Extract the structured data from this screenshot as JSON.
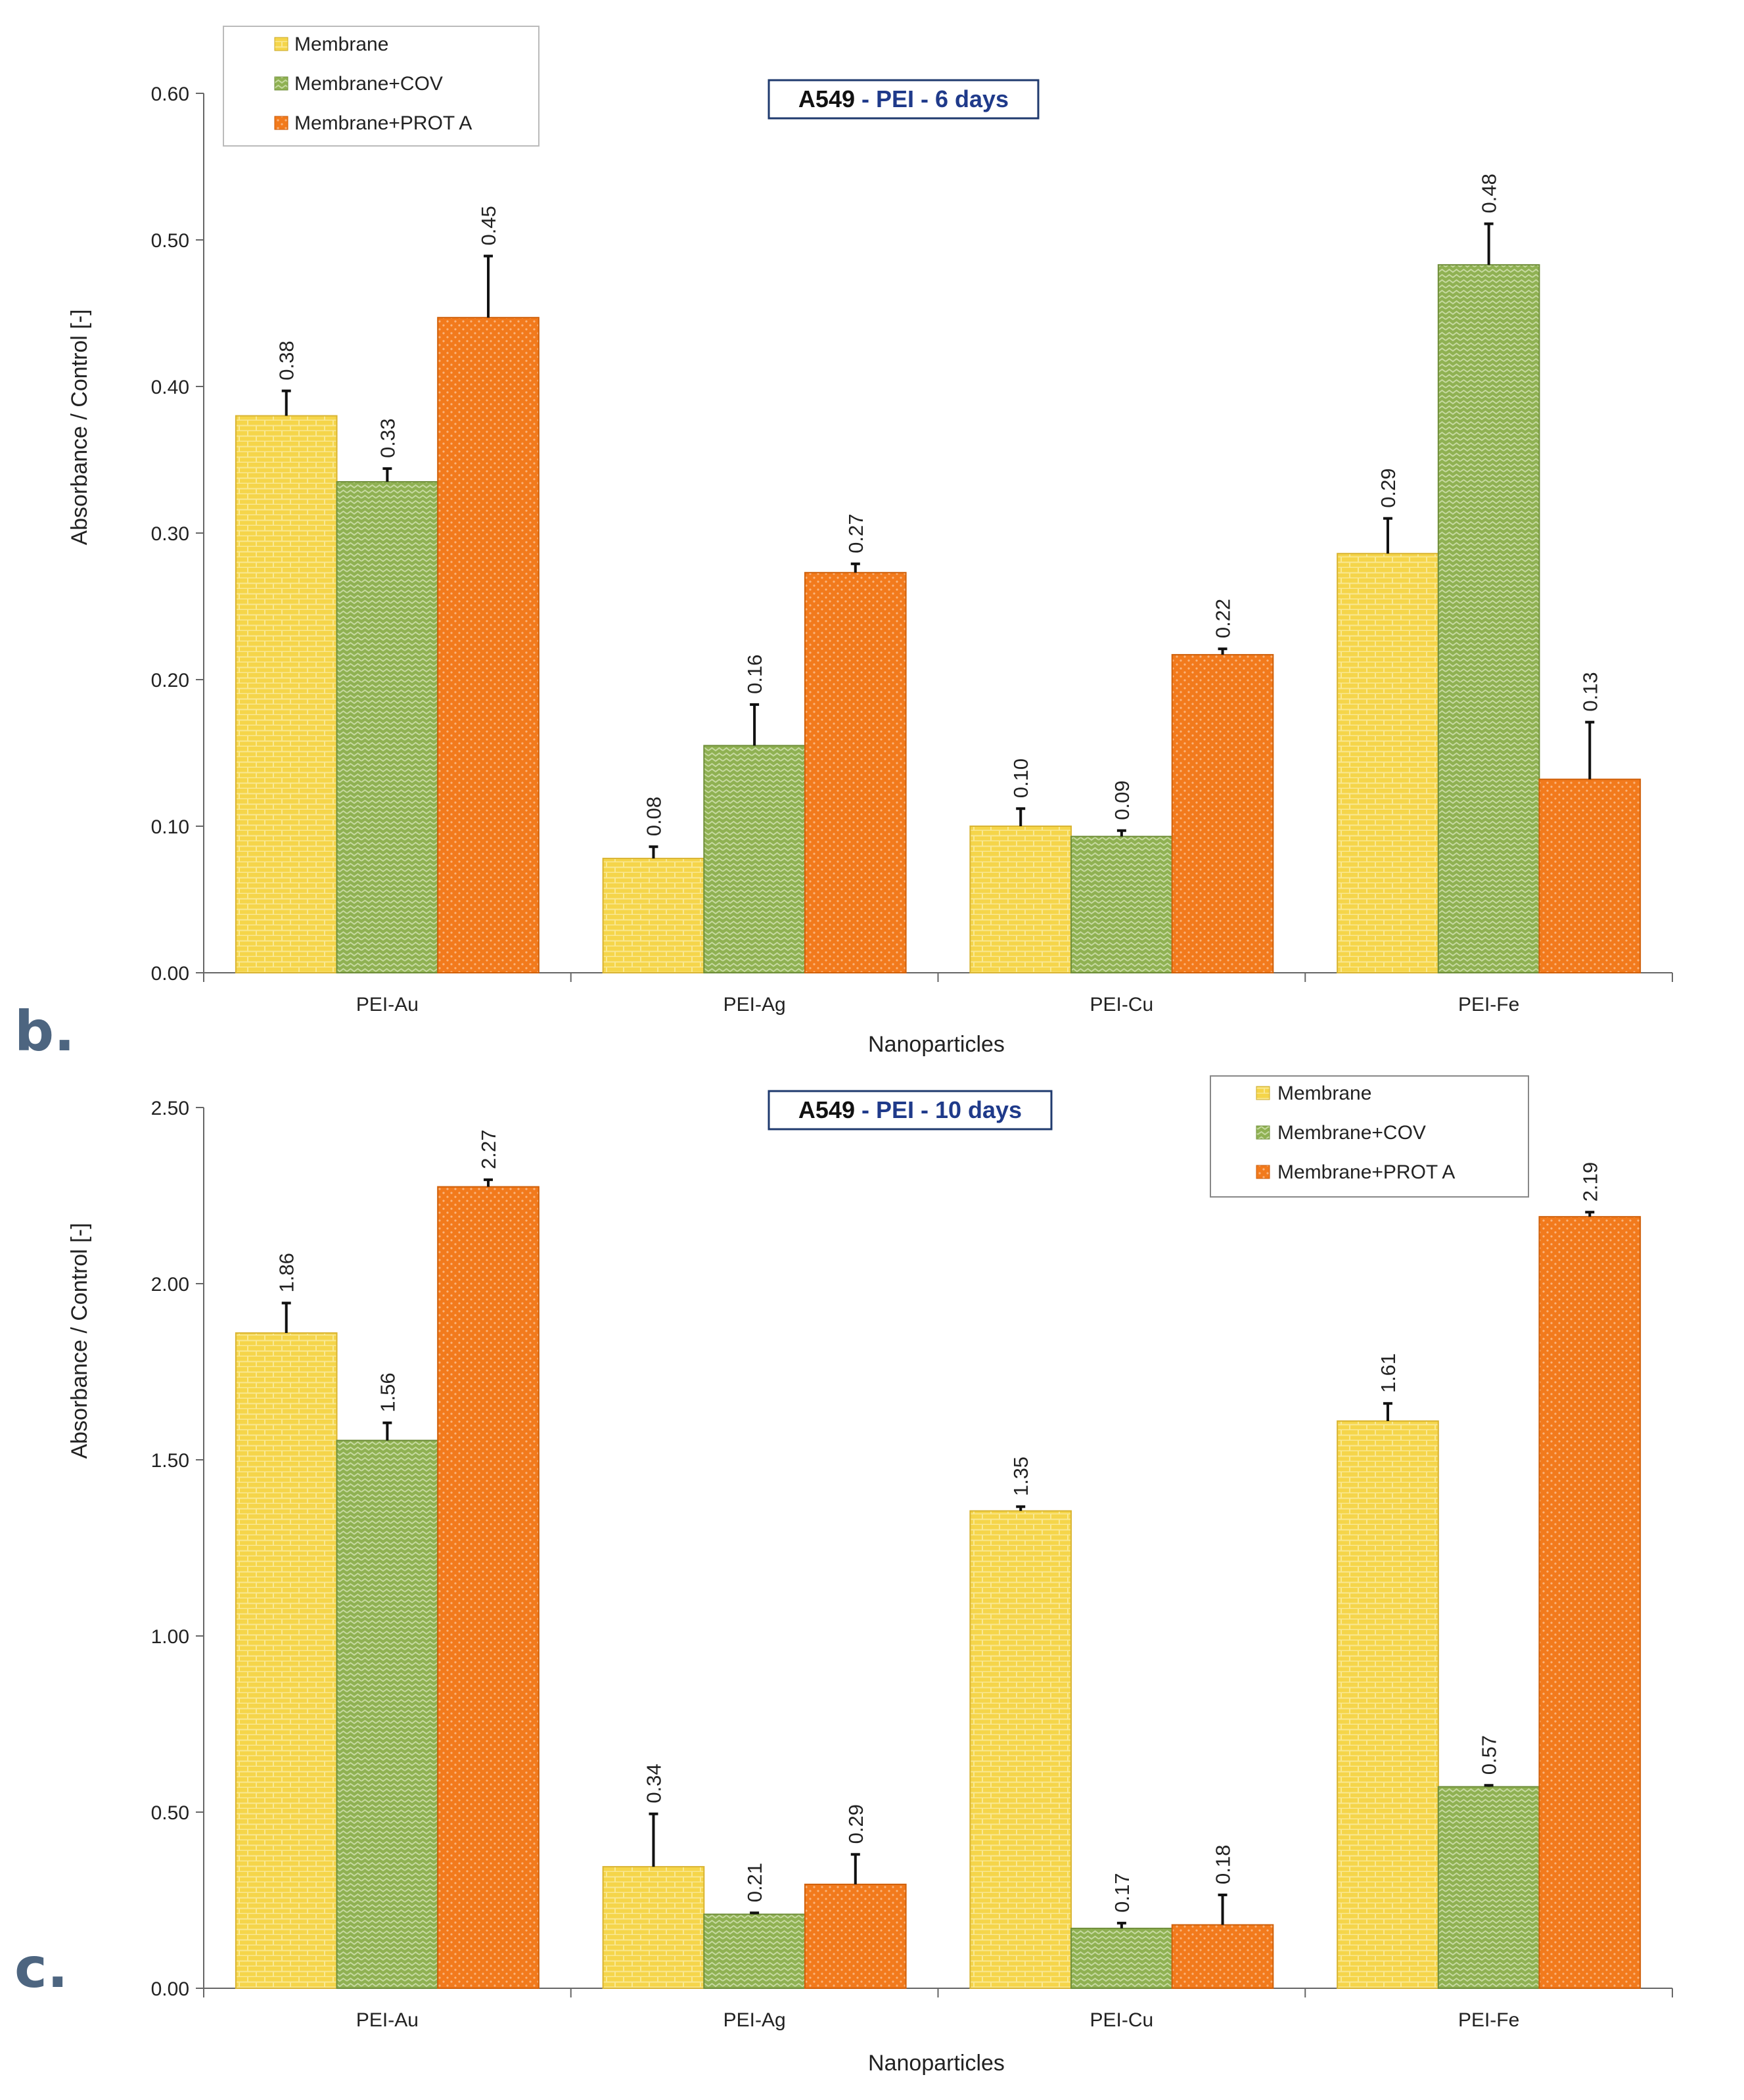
{
  "panel_labels": [
    "b.",
    "c."
  ],
  "colors": {
    "membrane": "#f5d54a",
    "membrane_cov": "#8fb152",
    "membrane_prot_a": "#f27a1c",
    "title_text": "#1f3a8a",
    "title_border": "#1f3a6e"
  },
  "chart_data": [
    {
      "type": "bar",
      "title_prefix": "A549",
      "title_suffix": " - PEI - 6 days",
      "xlabel": "Nanoparticles",
      "ylabel": "Absorbance / Control [-]",
      "ylim": [
        0,
        0.6
      ],
      "yticks": [
        "0.00",
        "0.10",
        "0.20",
        "0.30",
        "0.40",
        "0.50",
        "0.60"
      ],
      "categories": [
        "PEI-Au",
        "PEI-Ag",
        "PEI-Cu",
        "PEI-Fe"
      ],
      "legend_position": "top-left",
      "series": [
        {
          "name": "Membrane",
          "values": [
            0.38,
            0.078,
            0.1,
            0.286
          ],
          "errors": [
            0.017,
            0.008,
            0.012,
            0.024
          ],
          "labels": [
            "0.38",
            "0.08",
            "0.10",
            "0.29"
          ]
        },
        {
          "name": "Membrane+COV",
          "values": [
            0.335,
            0.155,
            0.093,
            0.483
          ],
          "errors": [
            0.009,
            0.028,
            0.004,
            0.028
          ],
          "labels": [
            "0.33",
            "0.16",
            "0.09",
            "0.48"
          ]
        },
        {
          "name": "Membrane+PROT A",
          "values": [
            0.447,
            0.273,
            0.217,
            0.132
          ],
          "errors": [
            0.042,
            0.006,
            0.004,
            0.039
          ],
          "labels": [
            "0.45",
            "0.27",
            "0.22",
            "0.13"
          ]
        }
      ]
    },
    {
      "type": "bar",
      "title_prefix": "A549",
      "title_suffix": " - PEI - 10 days",
      "xlabel": "Nanoparticles",
      "ylabel": "Absorbance / Control [-]",
      "ylim": [
        0,
        2.5
      ],
      "yticks": [
        "0.00",
        "0.50",
        "1.00",
        "1.50",
        "2.00",
        "2.50"
      ],
      "categories": [
        "PEI-Au",
        "PEI-Ag",
        "PEI-Cu",
        "PEI-Fe"
      ],
      "legend_position": "top-right",
      "series": [
        {
          "name": "Membrane",
          "values": [
            1.86,
            0.345,
            1.355,
            1.61
          ],
          "errors": [
            0.085,
            0.15,
            0.012,
            0.05
          ],
          "labels": [
            "1.86",
            "0.34",
            "1.35",
            "1.61"
          ]
        },
        {
          "name": "Membrane+COV",
          "values": [
            1.555,
            0.21,
            0.17,
            0.572
          ],
          "errors": [
            0.05,
            0.004,
            0.015,
            0.004
          ],
          "labels": [
            "1.56",
            "0.21",
            "0.17",
            "0.57"
          ]
        },
        {
          "name": "Membrane+PROT A",
          "values": [
            2.275,
            0.295,
            0.18,
            2.19
          ],
          "errors": [
            0.02,
            0.085,
            0.085,
            0.013
          ],
          "labels": [
            "2.27",
            "0.29",
            "0.18",
            "2.19"
          ]
        }
      ]
    }
  ]
}
